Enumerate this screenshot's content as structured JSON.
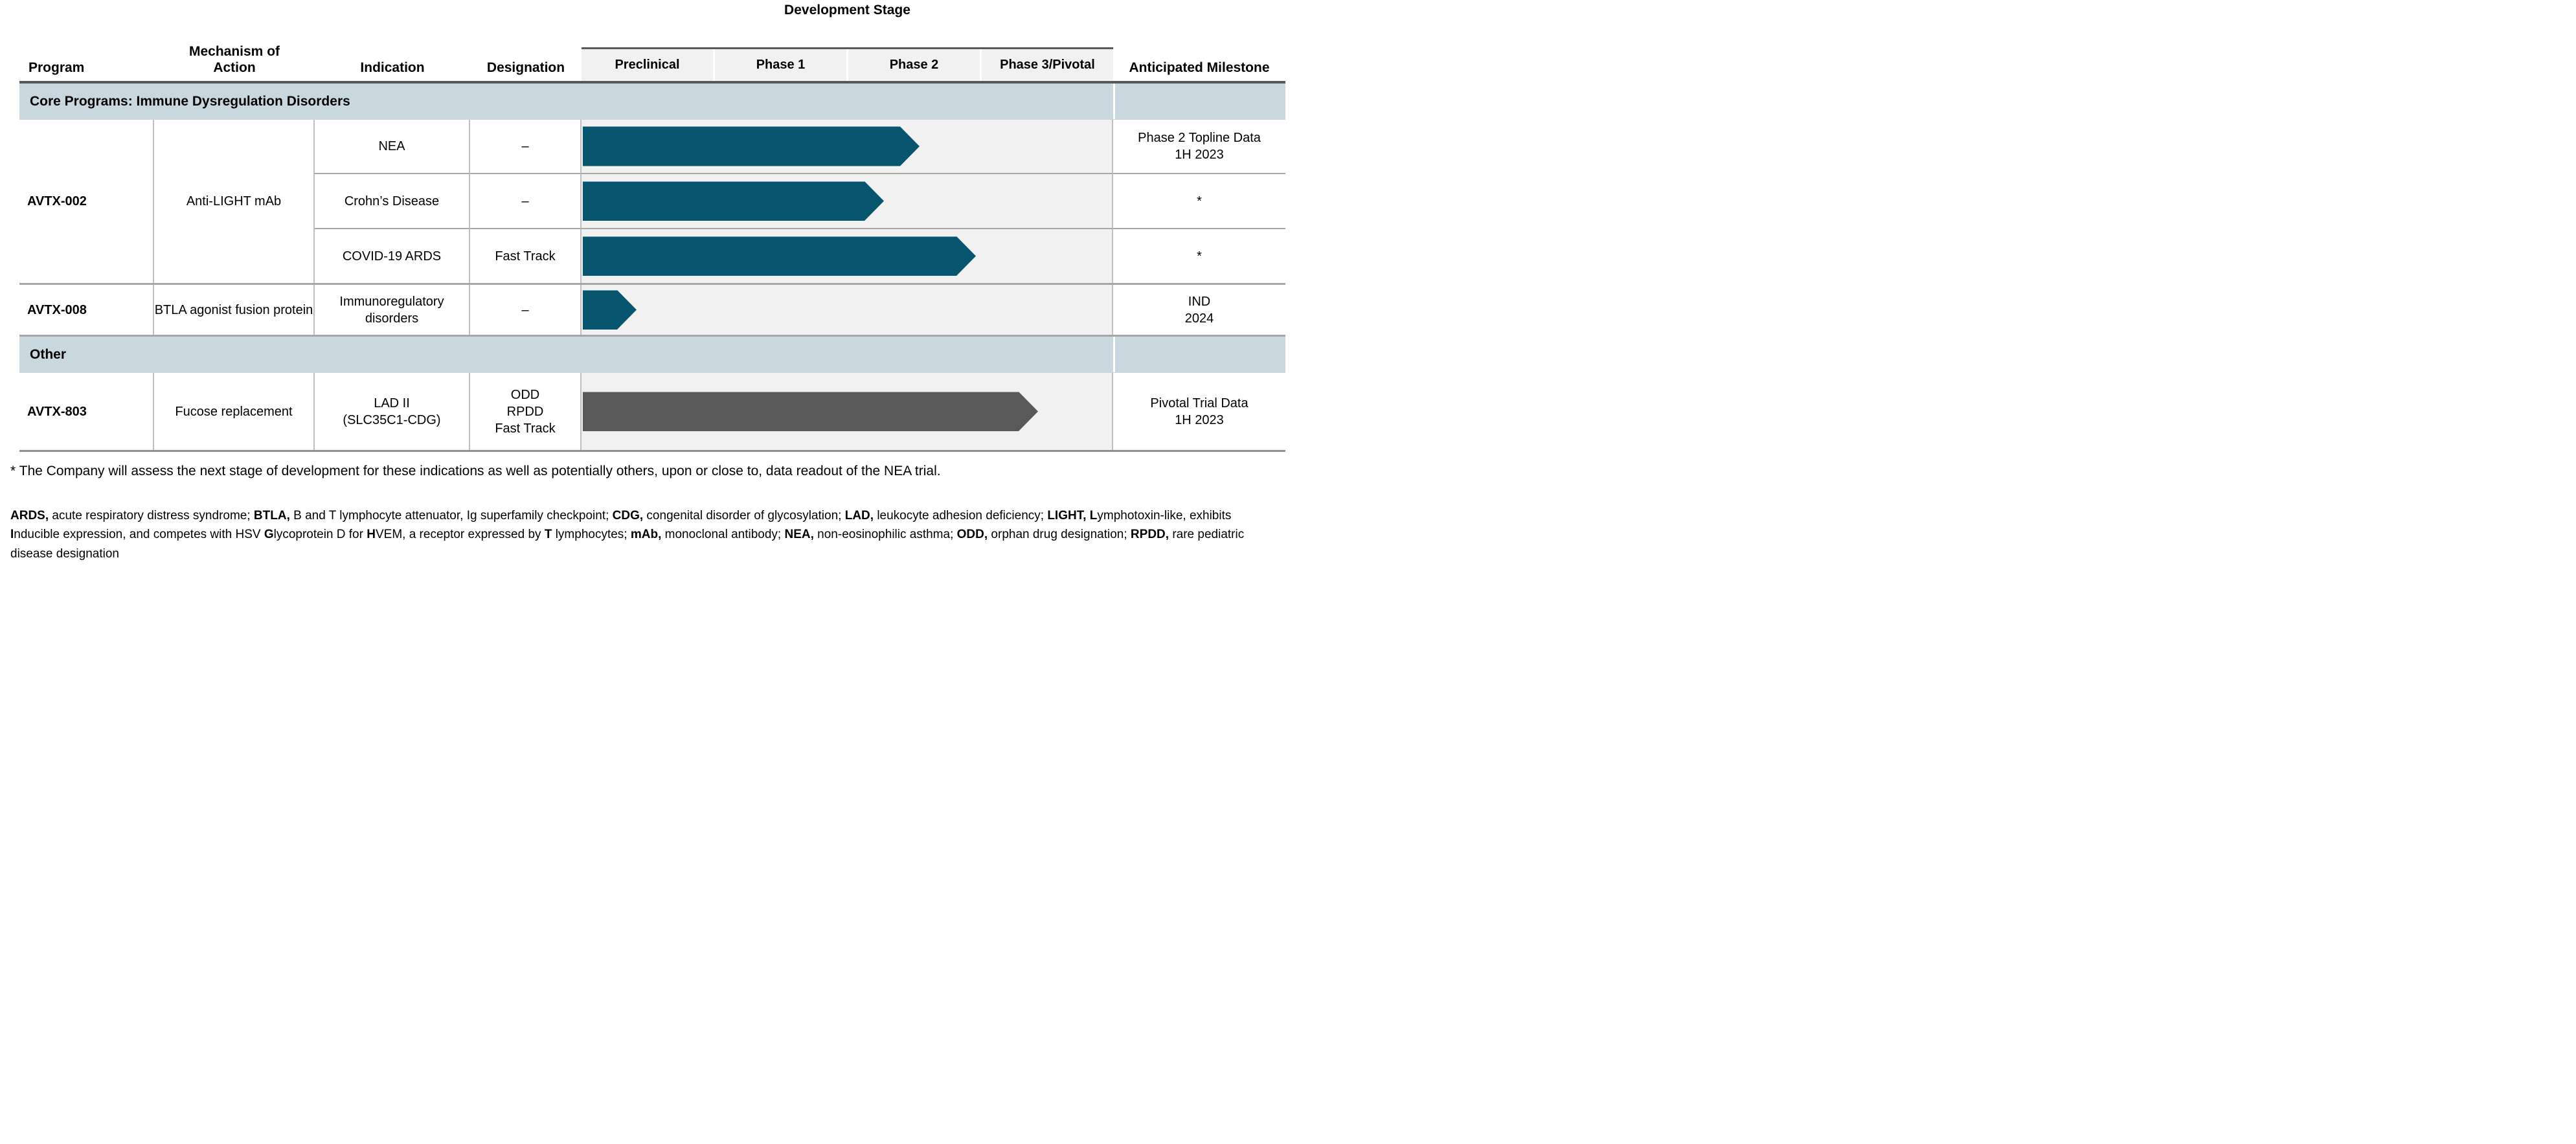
{
  "header": {
    "dev_stage_title": "Development Stage",
    "columns": {
      "program": "Program",
      "mechanism_line1": "Mechanism of",
      "mechanism_line2": "Action",
      "indication": "Indication",
      "designation": "Designation",
      "milestone": "Anticipated Milestone"
    },
    "stage_cols": [
      "Preclinical",
      "Phase 1",
      "Phase 2",
      "Phase 3/Pivotal"
    ]
  },
  "colors": {
    "teal": "#07556F",
    "gray": "#595959",
    "band": "#c9d8de",
    "stage_bg": "#f1f1f1"
  },
  "sections": [
    {
      "label": "Core Programs: Immune Dysregulation Disorders",
      "groups": [
        {
          "program": "AVTX-002",
          "mechanism": "Anti-LIGHT mAb",
          "rows": [
            {
              "indication": [
                "NEA"
              ],
              "designation": [
                "–"
              ],
              "bar": {
                "progress": 0.636,
                "color": "teal",
                "stage_reached": "Phase 2"
              },
              "milestone": [
                "Phase 2 Topline Data",
                "1H 2023"
              ]
            },
            {
              "indication": [
                "Crohn’s Disease"
              ],
              "designation": [
                "–"
              ],
              "bar": {
                "progress": 0.569,
                "color": "teal",
                "stage_reached": "Phase 2"
              },
              "milestone": [
                "*"
              ]
            },
            {
              "indication": [
                "COVID-19 ARDS"
              ],
              "designation": [
                "Fast Track"
              ],
              "bar": {
                "progress": 0.742,
                "color": "teal",
                "stage_reached": "Phase 2"
              },
              "milestone": [
                "*"
              ]
            }
          ]
        },
        {
          "program": "AVTX-008",
          "mechanism": "BTLA agonist fusion protein",
          "rows": [
            {
              "indication": [
                "Immunoregulatory",
                "disorders"
              ],
              "designation": [
                "–"
              ],
              "bar": {
                "progress": 0.104,
                "color": "teal",
                "stage_reached": "Preclinical"
              },
              "milestone": [
                "IND",
                "2024"
              ]
            }
          ]
        }
      ]
    },
    {
      "label": "Other",
      "groups": [
        {
          "program": "AVTX-803",
          "mechanism": "Fucose replacement",
          "rows": [
            {
              "indication": [
                "LAD II",
                "(SLC35C1-CDG)"
              ],
              "designation": [
                "ODD",
                "RPDD",
                "Fast Track"
              ],
              "bar": {
                "progress": 0.859,
                "color": "gray",
                "stage_reached": "Phase 3/Pivotal"
              },
              "milestone": [
                "Pivotal Trial Data",
                "1H 2023"
              ]
            }
          ]
        }
      ]
    }
  ],
  "footnote": "* The Company will assess the next stage of development for these indications as well as potentially others, upon or close to, data readout of the NEA trial.",
  "abbreviations": [
    {
      "t": "ARDS,",
      "b": true
    },
    {
      "t": " acute respiratory distress syndrome; "
    },
    {
      "t": "BTLA,",
      "b": true
    },
    {
      "t": " B and T lymphocyte attenuator, Ig superfamily checkpoint; "
    },
    {
      "t": "CDG,",
      "b": true
    },
    {
      "t": " congenital disorder of glycosylation; "
    },
    {
      "t": "LAD,",
      "b": true
    },
    {
      "t": " leukocyte adhesion deficiency; "
    },
    {
      "t": "LIGHT,",
      "b": true
    },
    {
      "t": " "
    },
    {
      "t": "L",
      "b": true
    },
    {
      "t": "ymphotoxin-like, exhibits "
    },
    {
      "t": "I",
      "b": true
    },
    {
      "t": "nducible expression, and competes with HSV "
    },
    {
      "t": "G",
      "b": true
    },
    {
      "t": "lycoprotein D for "
    },
    {
      "t": "H",
      "b": true
    },
    {
      "t": "VEM, a receptor expressed by "
    },
    {
      "t": "T",
      "b": true
    },
    {
      "t": " lymphocytes; "
    },
    {
      "t": "mAb,",
      "b": true
    },
    {
      "t": " monoclonal antibody; "
    },
    {
      "t": "NEA,",
      "b": true
    },
    {
      "t": " non-eosinophilic asthma; "
    },
    {
      "t": "ODD,",
      "b": true
    },
    {
      "t": " orphan drug designation; "
    },
    {
      "t": "RPDD,",
      "b": true
    },
    {
      "t": " rare pediatric disease designation"
    }
  ]
}
